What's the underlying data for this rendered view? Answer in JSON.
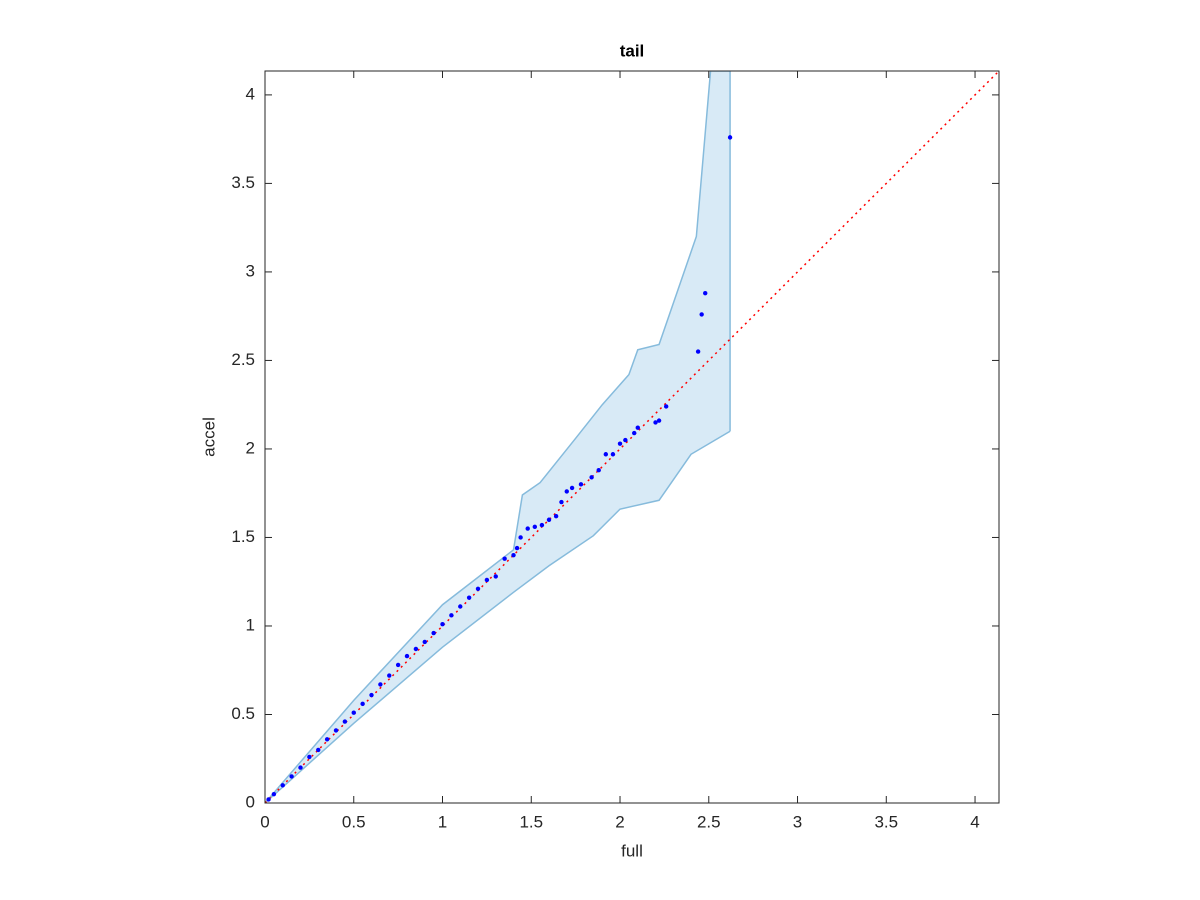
{
  "chart_data": {
    "type": "scatter",
    "title": "tail",
    "x_label": "full",
    "y_label": "accel",
    "xlim": [
      0,
      4.135
    ],
    "ylim": [
      0,
      4.135
    ],
    "xticks": [
      0,
      0.5,
      1,
      1.5,
      2,
      2.5,
      3,
      3.5,
      4
    ],
    "yticks": [
      0,
      0.5,
      1,
      1.5,
      2,
      2.5,
      3,
      3.5,
      4
    ],
    "series": [
      {
        "color": "#0000ff",
        "x": [
          0.02,
          0.05,
          0.1,
          0.15,
          0.2,
          0.25,
          0.3,
          0.35,
          0.4,
          0.45,
          0.5,
          0.55,
          0.6,
          0.65,
          0.7,
          0.75,
          0.8,
          0.85,
          0.9,
          0.95,
          1.0,
          1.05,
          1.1,
          1.15,
          1.2,
          1.25,
          1.3,
          1.35,
          1.4,
          1.42,
          1.44,
          1.48,
          1.52,
          1.56,
          1.6,
          1.64,
          1.67,
          1.7,
          1.73,
          1.78,
          1.84,
          1.88,
          1.92,
          1.96,
          2.0,
          2.03,
          2.08,
          2.1,
          2.2,
          2.22,
          2.26,
          2.44,
          2.46,
          2.48,
          2.62
        ],
        "values": [
          0.02,
          0.05,
          0.1,
          0.15,
          0.2,
          0.26,
          0.3,
          0.36,
          0.41,
          0.46,
          0.51,
          0.56,
          0.61,
          0.67,
          0.72,
          0.78,
          0.83,
          0.87,
          0.91,
          0.96,
          1.01,
          1.06,
          1.11,
          1.16,
          1.21,
          1.26,
          1.28,
          1.38,
          1.4,
          1.44,
          1.5,
          1.55,
          1.56,
          1.57,
          1.6,
          1.62,
          1.7,
          1.76,
          1.78,
          1.8,
          1.84,
          1.88,
          1.97,
          1.97,
          2.03,
          2.05,
          2.09,
          2.12,
          2.15,
          2.16,
          2.24,
          2.55,
          2.76,
          2.88,
          3.76
        ]
      }
    ],
    "band": {
      "color": "#b8d8ee",
      "edge_color": "#86bbdc",
      "x_upper": [
        0,
        0.5,
        1,
        1.4,
        1.45,
        1.55,
        1.75,
        1.9,
        2.05,
        2.1,
        2.22,
        2.43,
        2.51,
        2.62
      ],
      "upper": [
        0,
        0.58,
        1.12,
        1.43,
        1.74,
        1.81,
        2.06,
        2.25,
        2.42,
        2.56,
        2.59,
        3.2,
        4.135,
        4.135
      ],
      "x_lower": [
        0,
        0.5,
        1,
        1.4,
        1.6,
        1.85,
        2.0,
        2.22,
        2.4,
        2.62
      ],
      "lower": [
        0,
        0.45,
        0.88,
        1.19,
        1.34,
        1.51,
        1.66,
        1.71,
        1.97,
        2.1
      ]
    },
    "reference": {
      "color": "#ff0000",
      "x": [
        0,
        4.135
      ],
      "y": [
        0,
        4.135
      ]
    }
  }
}
